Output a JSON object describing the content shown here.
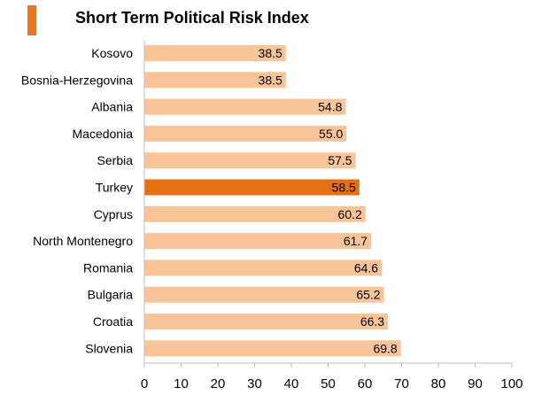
{
  "title": "Short Term Political Risk Index",
  "chart_data": {
    "type": "bar",
    "orientation": "horizontal",
    "title": "Short Term Political Risk Index",
    "categories": [
      "Kosovo",
      "Bosnia-Herzegovina",
      "Albania",
      "Macedonia",
      "Serbia",
      "Turkey",
      "Cyprus",
      "North Montenegro",
      "Romania",
      "Bulgaria",
      "Croatia",
      "Slovenia"
    ],
    "values": [
      38.5,
      38.5,
      54.8,
      55.0,
      57.5,
      58.5,
      60.2,
      61.7,
      64.6,
      65.2,
      66.3,
      69.8
    ],
    "value_labels": [
      "38.5",
      "38.5",
      "54.8",
      "55.0",
      "57.5",
      "58.5",
      "60.2",
      "61.7",
      "64.6",
      "65.2",
      "66.3",
      "69.8"
    ],
    "highlight": "Turkey",
    "xlim": [
      0,
      100
    ],
    "xticks": [
      0,
      10,
      20,
      30,
      40,
      50,
      60,
      70,
      80,
      90,
      100
    ],
    "xlabel": "",
    "ylabel": "",
    "grid": false,
    "legend": "none",
    "colors": {
      "bar": "#F9C498",
      "highlight": "#E5700F",
      "accent": "#E87722",
      "axis": "#BFBFBF",
      "text": "#000000"
    }
  }
}
